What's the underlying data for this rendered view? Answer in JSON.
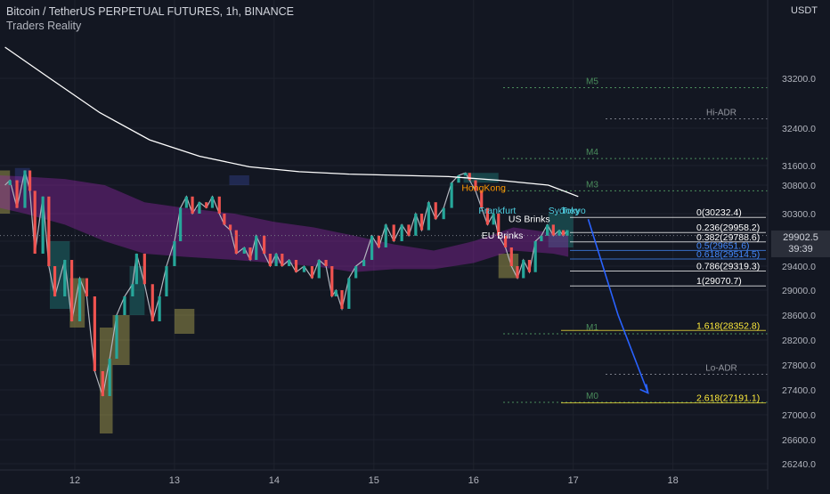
{
  "header": {
    "title": "Bitcoin / TetherUS PERPETUAL FUTURES, 1h, BINANCE",
    "indicator": "Traders Reality",
    "currency": "USDT"
  },
  "last_price": {
    "value": "29902.5",
    "countdown": "39:39"
  },
  "colors": {
    "background": "#131722",
    "up": "#26a69a",
    "down": "#ef5350",
    "vector_green": "#00e676",
    "vector_red": "#ff1744",
    "ema": "#ffffff",
    "cloud": "#9c27b0",
    "level": "#4a8d5c",
    "adr": "#787b86",
    "fib": "#ffffff",
    "target": "#ffeb3b",
    "projection": "#2962ff"
  },
  "chart_data": {
    "type": "candlestick",
    "title": "Bitcoin / TetherUS PERPETUAL FUTURES, 1h, BINANCE",
    "ylim": [
      26240,
      34000
    ],
    "y_ticks": [
      26240,
      26600,
      27000,
      27400,
      27800,
      28200,
      28600,
      29000,
      29400,
      29800,
      30300,
      30800,
      31600,
      32400,
      33200
    ],
    "y_tick_labels": [
      "26240.0",
      "26600.0",
      "27000.0",
      "27400.0",
      "27800.0",
      "28200.0",
      "28600.0",
      "29000.0",
      "29400.0",
      "29800.0",
      "30300.0",
      "30800.0",
      "31600.0",
      "32400.0",
      "33200.0"
    ],
    "x_ticks": [
      {
        "label": "12",
        "x": 12.0
      },
      {
        "label": "13",
        "x": 13.0
      },
      {
        "label": "14",
        "x": 14.0
      },
      {
        "label": "15",
        "x": 15.0
      },
      {
        "label": "16",
        "x": 16.0
      },
      {
        "label": "17",
        "x": 17.0
      },
      {
        "label": "18",
        "x": 18.0
      }
    ],
    "x_range": [
      11.25,
      18.95
    ],
    "price_path": [
      [
        11.3,
        30800
      ],
      [
        11.35,
        31000
      ],
      [
        11.42,
        30400
      ],
      [
        11.5,
        31400
      ],
      [
        11.55,
        30700
      ],
      [
        11.6,
        29600
      ],
      [
        11.68,
        30600
      ],
      [
        11.74,
        29400
      ],
      [
        11.8,
        28900
      ],
      [
        11.9,
        29500
      ],
      [
        11.97,
        28500
      ],
      [
        12.05,
        29200
      ],
      [
        12.12,
        28900
      ],
      [
        12.2,
        27700
      ],
      [
        12.28,
        27300
      ],
      [
        12.35,
        27900
      ],
      [
        12.42,
        28600
      ],
      [
        12.5,
        28900
      ],
      [
        12.58,
        29100
      ],
      [
        12.62,
        29600
      ],
      [
        12.7,
        29100
      ],
      [
        12.78,
        28500
      ],
      [
        12.85,
        28900
      ],
      [
        12.92,
        29400
      ],
      [
        13.0,
        29800
      ],
      [
        13.06,
        30400
      ],
      [
        13.12,
        30600
      ],
      [
        13.18,
        30300
      ],
      [
        13.25,
        30500
      ],
      [
        13.32,
        30400
      ],
      [
        13.38,
        30600
      ],
      [
        13.45,
        30300
      ],
      [
        13.5,
        30100
      ],
      [
        13.56,
        30000
      ],
      [
        13.62,
        29600
      ],
      [
        13.7,
        29700
      ],
      [
        13.76,
        29500
      ],
      [
        13.82,
        29900
      ],
      [
        13.9,
        29600
      ],
      [
        13.96,
        29400
      ],
      [
        14.02,
        29600
      ],
      [
        14.08,
        29400
      ],
      [
        14.15,
        29500
      ],
      [
        14.22,
        29300
      ],
      [
        14.3,
        29400
      ],
      [
        14.38,
        29200
      ],
      [
        14.45,
        29500
      ],
      [
        14.52,
        29400
      ],
      [
        14.58,
        28900
      ],
      [
        14.62,
        29000
      ],
      [
        14.68,
        28700
      ],
      [
        14.75,
        29200
      ],
      [
        14.82,
        29400
      ],
      [
        14.9,
        29500
      ],
      [
        14.98,
        29900
      ],
      [
        15.05,
        29700
      ],
      [
        15.12,
        30100
      ],
      [
        15.2,
        29800
      ],
      [
        15.28,
        30100
      ],
      [
        15.35,
        29900
      ],
      [
        15.42,
        30300
      ],
      [
        15.48,
        30000
      ],
      [
        15.55,
        30500
      ],
      [
        15.62,
        30200
      ],
      [
        15.7,
        30400
      ],
      [
        15.78,
        30900
      ],
      [
        15.85,
        31200
      ],
      [
        15.92,
        31300
      ],
      [
        15.96,
        31000
      ],
      [
        16.02,
        30700
      ],
      [
        16.08,
        30400
      ],
      [
        16.14,
        30100
      ],
      [
        16.2,
        30300
      ],
      [
        16.25,
        29900
      ],
      [
        16.32,
        29700
      ],
      [
        16.38,
        29400
      ],
      [
        16.44,
        29200
      ],
      [
        16.5,
        29500
      ],
      [
        16.56,
        29300
      ],
      [
        16.62,
        29800
      ],
      [
        16.68,
        29900
      ],
      [
        16.74,
        30100
      ],
      [
        16.8,
        29900
      ],
      [
        16.86,
        30000
      ],
      [
        16.9,
        29900
      ],
      [
        16.94,
        30000
      ]
    ],
    "ema_line": [
      [
        11.3,
        33700
      ],
      [
        11.75,
        33200
      ],
      [
        12.25,
        32650
      ],
      [
        12.75,
        32150
      ],
      [
        13.25,
        31800
      ],
      [
        13.75,
        31550
      ],
      [
        14.25,
        31350
      ],
      [
        14.75,
        31250
      ],
      [
        15.25,
        31200
      ],
      [
        15.75,
        31150
      ],
      [
        16.25,
        31000
      ],
      [
        16.75,
        30800
      ],
      [
        17.05,
        30600
      ]
    ],
    "ema_cloud": {
      "upper": [
        [
          11.25,
          31200
        ],
        [
          11.5,
          31150
        ],
        [
          11.9,
          31050
        ],
        [
          12.3,
          30800
        ],
        [
          12.7,
          30500
        ],
        [
          13.1,
          30400
        ],
        [
          13.6,
          30300
        ],
        [
          14.0,
          30150
        ],
        [
          14.4,
          30050
        ],
        [
          14.8,
          29900
        ],
        [
          15.2,
          29750
        ],
        [
          15.6,
          29650
        ],
        [
          16.0,
          29800
        ],
        [
          16.4,
          30050
        ],
        [
          16.8,
          29950
        ],
        [
          16.95,
          29900
        ]
      ],
      "lower": [
        [
          11.25,
          30400
        ],
        [
          11.5,
          30300
        ],
        [
          11.9,
          30100
        ],
        [
          12.3,
          29800
        ],
        [
          12.7,
          29600
        ],
        [
          13.1,
          29550
        ],
        [
          13.6,
          29500
        ],
        [
          14.0,
          29450
        ],
        [
          14.4,
          29400
        ],
        [
          14.8,
          29300
        ],
        [
          15.2,
          29350
        ],
        [
          15.6,
          29350
        ],
        [
          16.0,
          29450
        ],
        [
          16.4,
          29650
        ],
        [
          16.8,
          29600
        ],
        [
          16.95,
          29550
        ]
      ]
    },
    "levels": [
      {
        "label": "M5",
        "value": 33050
      },
      {
        "label": "Hi-ADR",
        "value": 32550
      },
      {
        "label": "M4",
        "value": 31750
      },
      {
        "label": "M3",
        "value": 30700
      },
      {
        "label": "M1",
        "value": 28300
      },
      {
        "label": "Lo-ADR",
        "value": 27650
      },
      {
        "label": "M0",
        "value": 27200
      }
    ],
    "fibonacci": [
      {
        "label": "0(30232.4)",
        "value": 30232.4
      },
      {
        "label": "0.236(29958.2)",
        "value": 29958.2
      },
      {
        "label": "0.382(29788.6)",
        "value": 29788.6
      },
      {
        "label": "0.5(29651.6)",
        "value": 29651.6
      },
      {
        "label": "0.618(29514.5)",
        "value": 29514.5
      },
      {
        "label": "0.786(29319.3)",
        "value": 29319.3
      },
      {
        "label": "1(29070.7)",
        "value": 29070.7
      },
      {
        "label": "1.618(28352.8)",
        "value": 28352.8
      },
      {
        "label": "2.618(27191.1)",
        "value": 27191.1
      }
    ],
    "sessions": [
      {
        "label": "HongKong",
        "x": 15.88,
        "y": 30700
      },
      {
        "label": "Frankfurt",
        "x": 16.05,
        "y": 30300
      },
      {
        "label": "US Brinks",
        "x": 16.35,
        "y": 30150
      },
      {
        "label": "Sydney",
        "x": 16.75,
        "y": 30300
      },
      {
        "label": "Tokyo",
        "x": 16.88,
        "y": 30300
      },
      {
        "label": "EU Brinks",
        "x": 16.08,
        "y": 29850
      }
    ],
    "projection": [
      [
        17.15,
        30200
      ],
      [
        17.45,
        28600
      ],
      [
        17.75,
        27350
      ]
    ],
    "last_price": 29902.5
  }
}
